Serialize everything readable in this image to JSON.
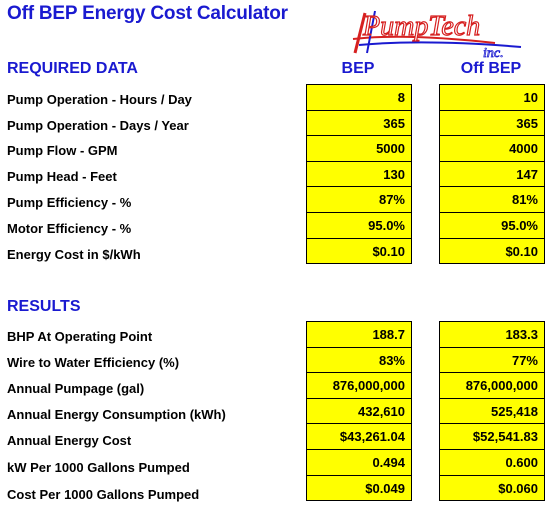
{
  "title": "Off BEP Energy Cost Calculator",
  "logo": {
    "line1": "PumpTech",
    "line2": "inc."
  },
  "required": {
    "heading": "REQUIRED DATA",
    "col_bep": "BEP",
    "col_off": "Off BEP",
    "rows": [
      {
        "label": "Pump Operation - Hours / Day",
        "bep": "8",
        "off": "10"
      },
      {
        "label": "Pump Operation - Days / Year",
        "bep": "365",
        "off": "365"
      },
      {
        "label": "Pump Flow - GPM",
        "bep": "5000",
        "off": "4000"
      },
      {
        "label": "Pump Head - Feet",
        "bep": "130",
        "off": "147"
      },
      {
        "label": "Pump Efficiency - %",
        "bep": "87%",
        "off": "81%"
      },
      {
        "label": "Motor Efficiency - %",
        "bep": "95.0%",
        "off": "95.0%"
      },
      {
        "label": "Energy Cost in $/kWh",
        "bep": "$0.10",
        "off": "$0.10"
      }
    ]
  },
  "results": {
    "heading": "RESULTS",
    "rows": [
      {
        "label": "BHP At Operating Point",
        "bep": "188.7",
        "off": "183.3"
      },
      {
        "label": "Wire to Water Efficiency  (%)",
        "bep": "83%",
        "off": "77%"
      },
      {
        "label": "Annual Pumpage (gal)",
        "bep": "876,000,000",
        "off": "876,000,000"
      },
      {
        "label": "Annual Energy Consumption (kWh)",
        "bep": "432,610",
        "off": "525,418"
      },
      {
        "label": "Annual Energy Cost",
        "bep": "$43,261.04",
        "off": "$52,541.83"
      },
      {
        "label": "kW Per 1000 Gallons Pumped",
        "bep": "0.494",
        "off": "0.600"
      },
      {
        "label": "Cost Per 1000 Gallons Pumped",
        "bep": "$0.049",
        "off": "$0.060"
      }
    ]
  },
  "colors": {
    "heading": "#1a1ad0",
    "cell": "#ffff00",
    "logo_red": "#d62020",
    "logo_blue": "#1a1ad0"
  }
}
